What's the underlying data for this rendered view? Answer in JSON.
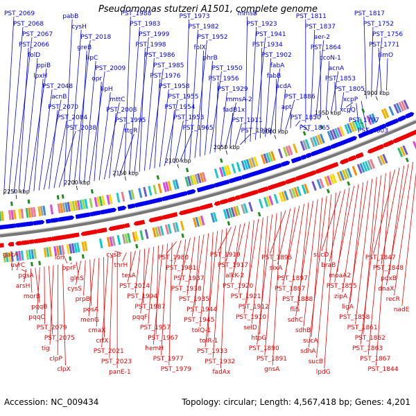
{
  "title": "Pseudomonas stutzeri A1501, complete genome",
  "footer": {
    "accession": "Accession: NC_009434",
    "summary": "Topology: circular; Length: 4,567,418 bp; Genes: 4,201"
  },
  "colors": {
    "forward": "#0000ee",
    "reverse": "#ee0000",
    "backbone": "#888888",
    "tick_rna": "#228b22"
  },
  "axis_ticks": [
    "2250 kbp",
    "2200 kbp",
    "2150 kbp",
    "2100 kbp",
    "2050 kbp",
    "2000 kbp",
    "1950 kbp",
    "1900 kbp"
  ],
  "forward_labels": [
    "PST_2069",
    "PST_2068",
    "PST_2067",
    "PST_2066",
    "folD",
    "ppiB",
    "lpxH",
    "PST_2048",
    "acnB",
    "PST_2070",
    "PST_2084",
    "PST_2038",
    "pabB",
    "cysH",
    "PST_2018",
    "greB",
    "lipC",
    "PST_2009",
    "opr",
    "lipH",
    "mttC",
    "PST_2008",
    "PST_1995",
    "ttgR",
    "PST_1988",
    "PST_1983",
    "PST_1999",
    "PST_1998",
    "PST_1986",
    "PST_1985",
    "PST_1976",
    "PST_1958",
    "PST_1955",
    "PST_1954",
    "PST_1953",
    "PST_1965",
    "PST_1973",
    "PST_1982",
    "PST_1952",
    "folX",
    "phrB",
    "PST_1950",
    "PST_1956",
    "PST_1929",
    "mmsA-2",
    "fadB1x",
    "PST_1911",
    "PST_1939",
    "mmsB",
    "PST_1923",
    "PST_1941",
    "PST_1934",
    "PST_1902",
    "fabA",
    "fabB",
    "acdA",
    "PST_1886",
    "apt",
    "PST_1850",
    "PST_1865",
    "PST_1811",
    "PST_1837",
    "aer-2",
    "PST_1864",
    "ccoN-1",
    "acnA",
    "PST_1853",
    "PST_1805",
    "xcpP",
    "xcpQ",
    "PST_1797",
    "PST_1803",
    "PST_1817",
    "PST_1752",
    "PST_1756",
    "PST_1771",
    "rimO"
  ],
  "reverse_labels": [
    "gacA",
    "uvrC",
    "pgsA",
    "arsH",
    "morB",
    "pqqB",
    "pqqC",
    "PST_2079",
    "PST_2075",
    "tig",
    "clpP",
    "clpX",
    "lon",
    "oprF",
    "glnS",
    "cysS",
    "prpB",
    "posA",
    "menG",
    "cmaX",
    "crfX",
    "PST_2021",
    "PST_2023",
    "panE-1",
    "cysB",
    "thrH",
    "tesA",
    "PST_2014",
    "PST_1994",
    "PST_1987",
    "pqqF",
    "PST_1957",
    "PST_1967",
    "hemH",
    "PST_1977",
    "PST_1979",
    "PST_1980",
    "PST_1981",
    "PST_1937",
    "PST_1938",
    "PST_1935",
    "PST_1944",
    "PST_1945",
    "tolQ-1",
    "tolR-1",
    "PST_1933",
    "PST_1932",
    "fadAx",
    "PST_1919",
    "PST_1917",
    "alkK-2",
    "PST_1920",
    "PST_1921",
    "PST_1912",
    "PST_1910",
    "selD",
    "htpG",
    "PST_1890",
    "PST_1891",
    "gnsA",
    "PST_1895",
    "sixA",
    "PST_1897",
    "PST_1887",
    "PST_1888",
    "fliS",
    "sdhC",
    "sdhB",
    "sucA",
    "sdhA",
    "sucB",
    "lpdG",
    "sucD",
    "braB",
    "moaA2",
    "PST_1855",
    "zipA",
    "ligA",
    "PST_1858",
    "PST_1861",
    "PST_1862",
    "PST_1863",
    "PST_1867",
    "PST_1844",
    "PST_1847",
    "PST_1848",
    "pdxB",
    "dnaX",
    "recR",
    "nadE"
  ]
}
